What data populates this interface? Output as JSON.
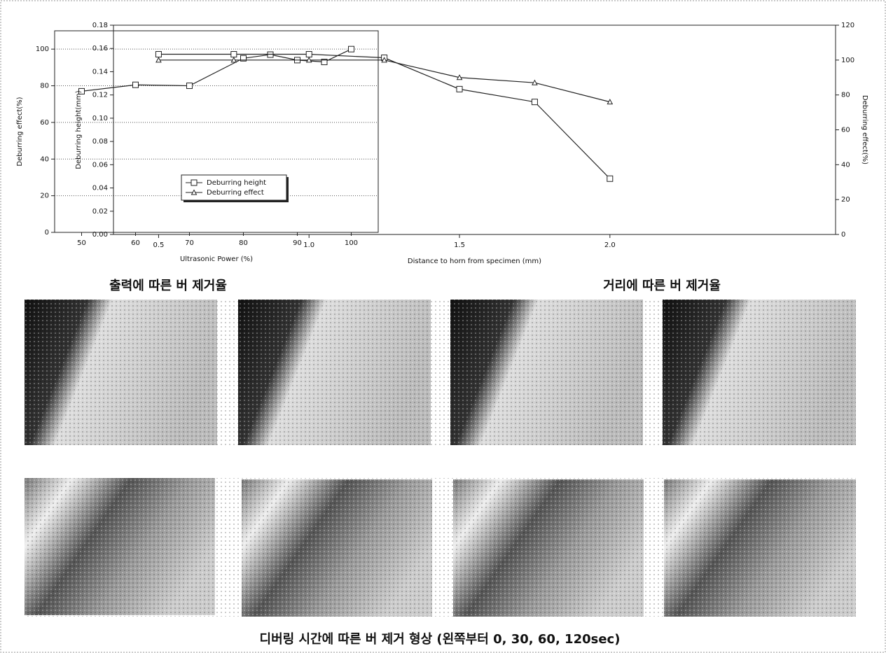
{
  "chart_data": [
    {
      "type": "line",
      "x": [
        50,
        60,
        70,
        80,
        85,
        90,
        95,
        100
      ],
      "values": [
        77,
        80.5,
        80,
        95,
        97,
        94,
        93,
        100
      ],
      "color": "#222222",
      "marker": "square",
      "xlim": [
        45,
        105
      ],
      "xticks": [
        50,
        60,
        70,
        80,
        90,
        100
      ],
      "ylim": [
        0,
        110
      ],
      "yticks": [
        0,
        20,
        40,
        60,
        80,
        100
      ],
      "grid": true,
      "x_label": "Ultrasonic Power (%)",
      "y_label": "Deburring effect(%)",
      "caption": "출력에 따른 버 제거율"
    },
    {
      "type": "line",
      "x": [
        0.5,
        0.75,
        1.0,
        1.25,
        1.5,
        1.75,
        2.0
      ],
      "series": [
        {
          "name": "Deburring height",
          "color": "#222222",
          "marker": "square",
          "values": [
            0.155,
            0.155,
            0.155,
            0.152,
            0.125,
            0.114,
            0.048
          ]
        },
        {
          "name": "Deburring effect",
          "color": "#222222",
          "marker": "triangle",
          "axis": "y2",
          "values": [
            100,
            100,
            100,
            100,
            90,
            87,
            76
          ]
        }
      ],
      "xlim": [
        0.35,
        2.75
      ],
      "xticks": [
        0.5,
        {
          "value": 1,
          "label": "1.0"
        },
        1.5,
        {
          "value": 2,
          "label": "2.0"
        }
      ],
      "ylim": [
        0,
        0.18
      ],
      "yticks": [
        {
          "value": 0,
          "label": "0.00"
        },
        0.02,
        0.04,
        0.06,
        0.08,
        {
          "value": 0.1,
          "label": "0.10"
        },
        0.12,
        0.14,
        0.16,
        0.18
      ],
      "y2lim": [
        0,
        120
      ],
      "y2ticks": [
        0,
        20,
        40,
        60,
        80,
        100,
        120
      ],
      "grid": false,
      "legend": "lower left",
      "x_label": "Distance to horn from specimen (mm)",
      "y_label": "Deburring height(mm)",
      "y2_label": "Deburring effect(%)",
      "caption": "거리에 따른 버 제거율"
    }
  ],
  "figure_caption": "디버링 시간에 따른 버 제거 형상 (왼쪽부터 0, 30, 60, 120sec)"
}
